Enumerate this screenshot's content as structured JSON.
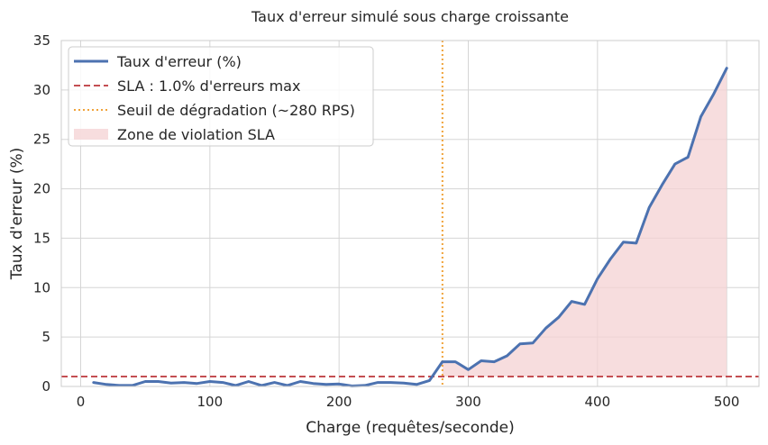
{
  "chart_data": {
    "type": "line",
    "title": "Taux d'erreur simulé sous charge croissante",
    "xlabel": "Charge (requêtes/seconde)",
    "ylabel": "Taux d'erreur (%)",
    "xlim": [
      -15,
      525
    ],
    "ylim": [
      0,
      35
    ],
    "xticks": [
      0,
      100,
      200,
      300,
      400,
      500
    ],
    "yticks": [
      0,
      5,
      10,
      15,
      20,
      25,
      30,
      35
    ],
    "grid": true,
    "legend_position": "top-left",
    "x": [
      10,
      20,
      30,
      40,
      50,
      60,
      70,
      80,
      90,
      100,
      110,
      120,
      130,
      140,
      150,
      160,
      170,
      180,
      190,
      200,
      210,
      220,
      230,
      240,
      250,
      260,
      270,
      280,
      290,
      300,
      310,
      320,
      330,
      340,
      350,
      360,
      370,
      380,
      390,
      400,
      410,
      420,
      430,
      440,
      450,
      460,
      470,
      480,
      490,
      500
    ],
    "series": [
      {
        "name": "Taux d'erreur (%)",
        "color": "#4c72b0",
        "values": [
          0.4,
          0.2,
          0.1,
          0.1,
          0.5,
          0.5,
          0.35,
          0.4,
          0.3,
          0.5,
          0.4,
          0.1,
          0.5,
          0.1,
          0.4,
          0.1,
          0.5,
          0.3,
          0.2,
          0.25,
          0.05,
          0.1,
          0.4,
          0.4,
          0.35,
          0.2,
          0.6,
          2.5,
          2.5,
          1.7,
          2.6,
          2.5,
          3.1,
          4.3,
          4.4,
          5.9,
          7.0,
          8.6,
          8.3,
          10.9,
          12.9,
          14.6,
          14.5,
          18.1,
          20.4,
          22.5,
          23.2,
          27.3,
          29.6,
          32.2
        ]
      }
    ],
    "sla_line": {
      "label": "SLA : 1.0% d'erreurs max",
      "value": 1.0,
      "color": "#c44e52"
    },
    "threshold_line": {
      "label": "Seuil de dégradation (~280 RPS)",
      "value": 280,
      "color": "#f0a33a"
    },
    "violation_zone": {
      "label": "Zone de violation SLA",
      "color": "#f4d2d3"
    }
  }
}
